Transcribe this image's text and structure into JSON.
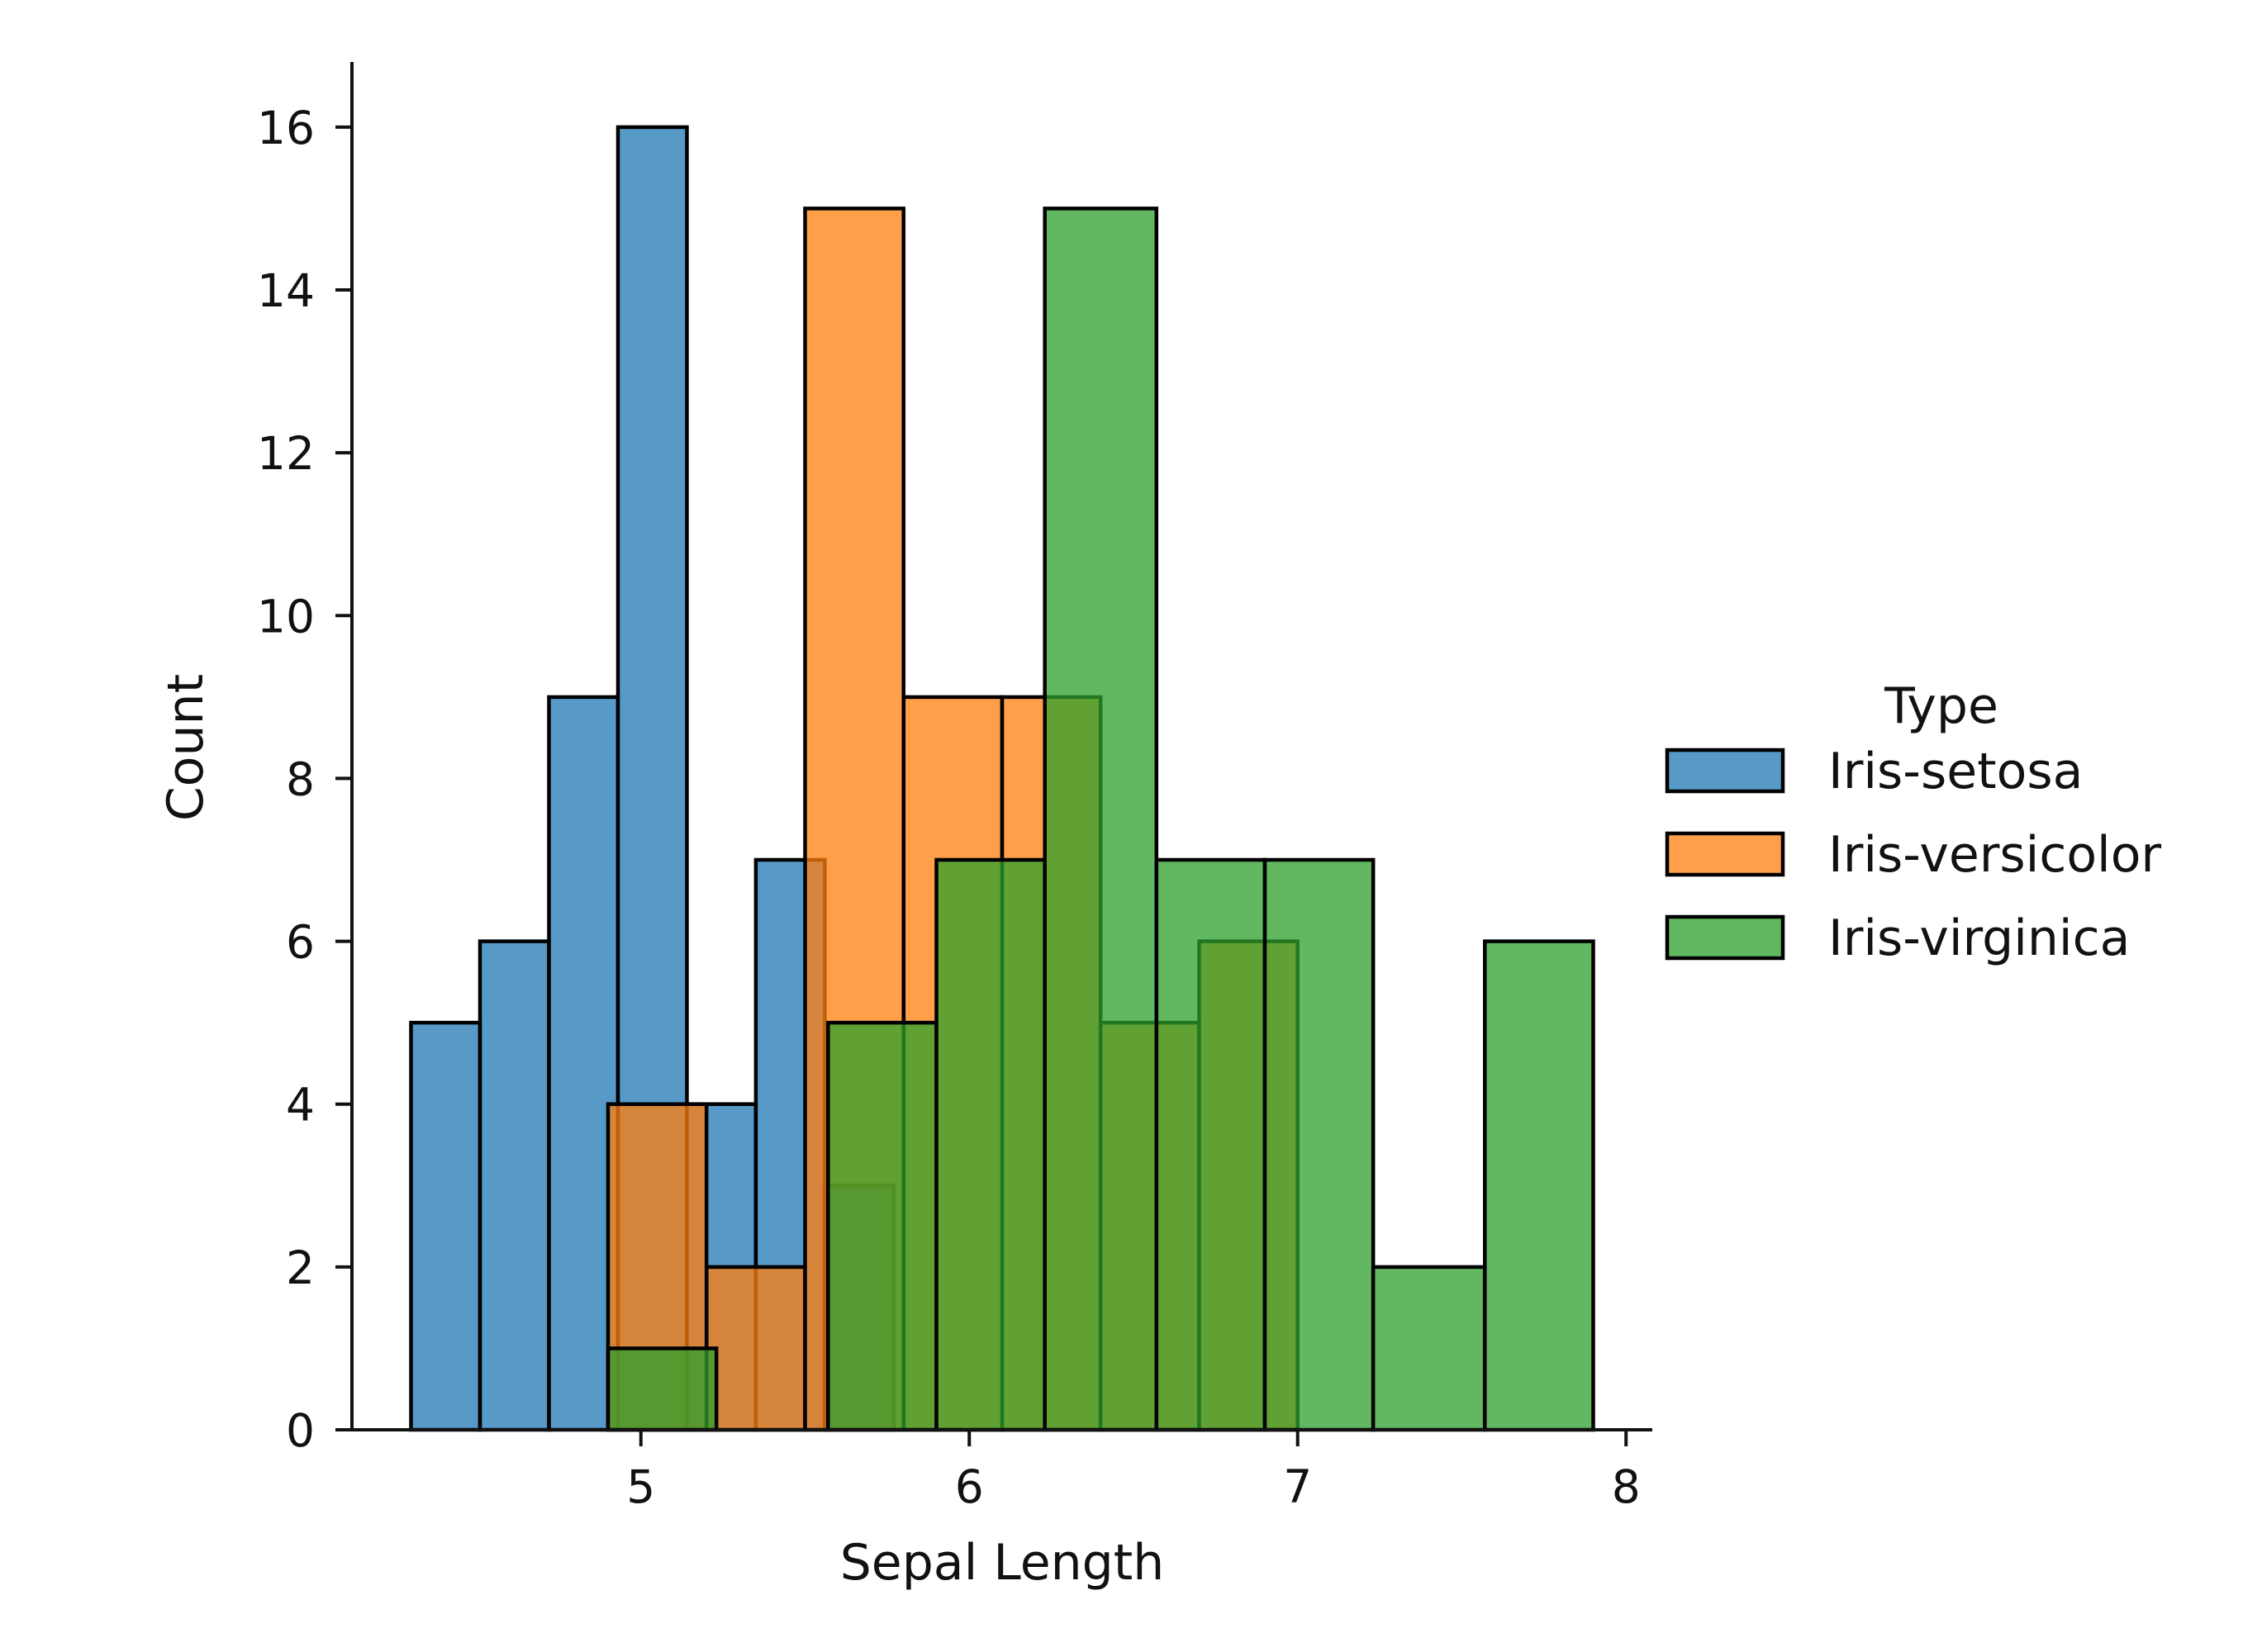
{
  "chart_data": {
    "type": "bar",
    "title": "",
    "xlabel": "Sepal Length",
    "ylabel": "Count",
    "xlim": [
      4.12,
      8.08
    ],
    "ylim": [
      0,
      16.8
    ],
    "xticks": [
      5,
      6,
      7,
      8
    ],
    "yticks": [
      0,
      2,
      4,
      6,
      8,
      10,
      12,
      14,
      16
    ],
    "grid": false,
    "legend": {
      "title": "Type",
      "placement": "right"
    },
    "series": [
      {
        "name": "Iris-setosa",
        "color": "#1f77b4",
        "bins": [
          {
            "x0": 4.3,
            "x1": 4.51,
            "count": 5
          },
          {
            "x0": 4.51,
            "x1": 4.72,
            "count": 6
          },
          {
            "x0": 4.72,
            "x1": 4.93,
            "count": 9
          },
          {
            "x0": 4.93,
            "x1": 5.14,
            "count": 16
          },
          {
            "x0": 5.14,
            "x1": 5.35,
            "count": 4
          },
          {
            "x0": 5.35,
            "x1": 5.56,
            "count": 7
          },
          {
            "x0": 5.56,
            "x1": 5.77,
            "count": 3
          }
        ]
      },
      {
        "name": "Iris-versicolor",
        "color": "#ff7f0e",
        "bins": [
          {
            "x0": 4.9,
            "x1": 5.2,
            "count": 4
          },
          {
            "x0": 5.2,
            "x1": 5.5,
            "count": 2
          },
          {
            "x0": 5.5,
            "x1": 5.8,
            "count": 15
          },
          {
            "x0": 5.8,
            "x1": 6.1,
            "count": 9
          },
          {
            "x0": 6.1,
            "x1": 6.4,
            "count": 9
          },
          {
            "x0": 6.4,
            "x1": 6.7,
            "count": 5
          },
          {
            "x0": 6.7,
            "x1": 7.0,
            "count": 6
          }
        ]
      },
      {
        "name": "Iris-virginica",
        "color": "#2ca02c",
        "bins": [
          {
            "x0": 4.9,
            "x1": 5.23,
            "count": 1
          },
          {
            "x0": 5.23,
            "x1": 5.57,
            "count": 0
          },
          {
            "x0": 5.57,
            "x1": 5.9,
            "count": 5
          },
          {
            "x0": 5.9,
            "x1": 6.23,
            "count": 7
          },
          {
            "x0": 6.23,
            "x1": 6.57,
            "count": 15
          },
          {
            "x0": 6.57,
            "x1": 6.9,
            "count": 7
          },
          {
            "x0": 6.9,
            "x1": 7.23,
            "count": 7
          },
          {
            "x0": 7.23,
            "x1": 7.57,
            "count": 2
          },
          {
            "x0": 7.57,
            "x1": 7.9,
            "count": 6
          }
        ]
      }
    ]
  }
}
